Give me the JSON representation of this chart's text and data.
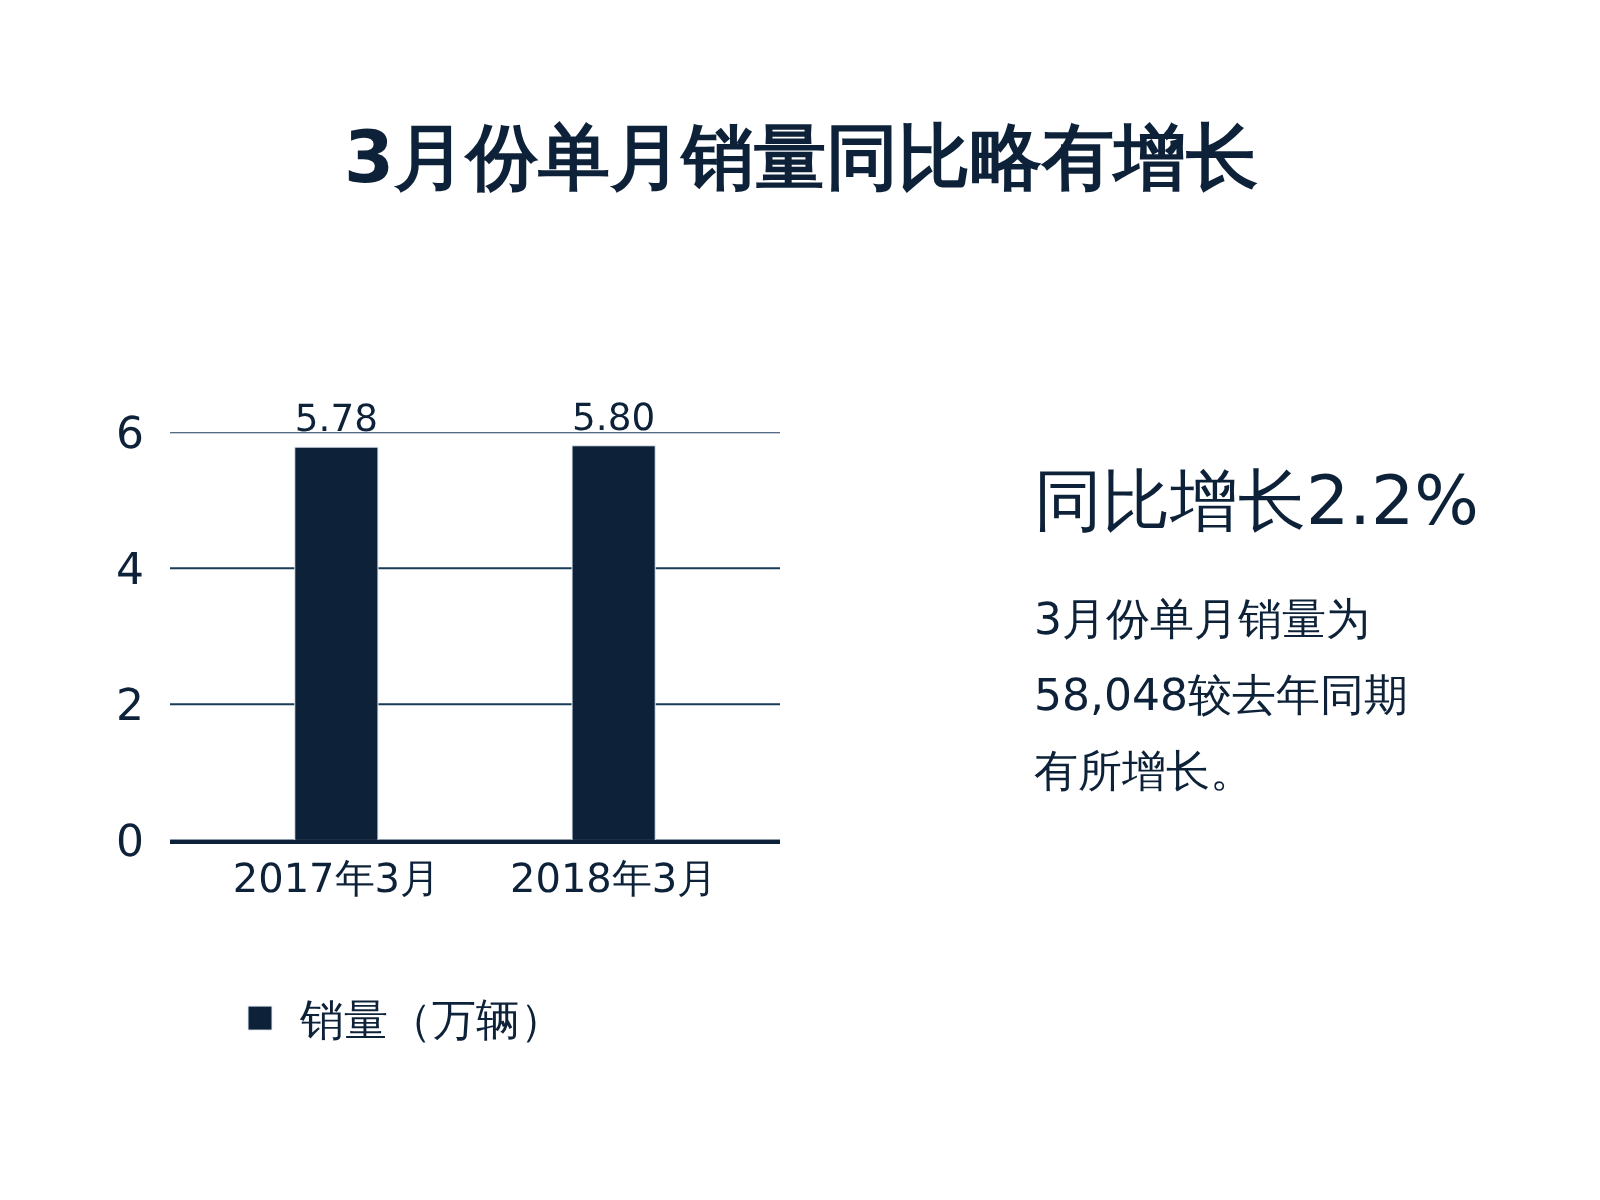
{
  "chart_data": {
    "type": "bar",
    "title": "3月份单月销量同比略有增长",
    "categories": [
      "2017年3月",
      "2018年3月"
    ],
    "series": [
      {
        "name": "销量（万辆）",
        "color": "#0d2138",
        "values": [
          5.78,
          5.8
        ],
        "value_labels": [
          "5.78",
          "5.80"
        ]
      }
    ],
    "ylim": [
      0,
      6
    ],
    "yticks": [
      0,
      2,
      4,
      6
    ],
    "grid": "y",
    "legend": "bottom",
    "annotations": [
      "同比增长2.2%",
      "3月份单月销量为",
      "58,048较去年同期",
      "有所增长。"
    ]
  }
}
